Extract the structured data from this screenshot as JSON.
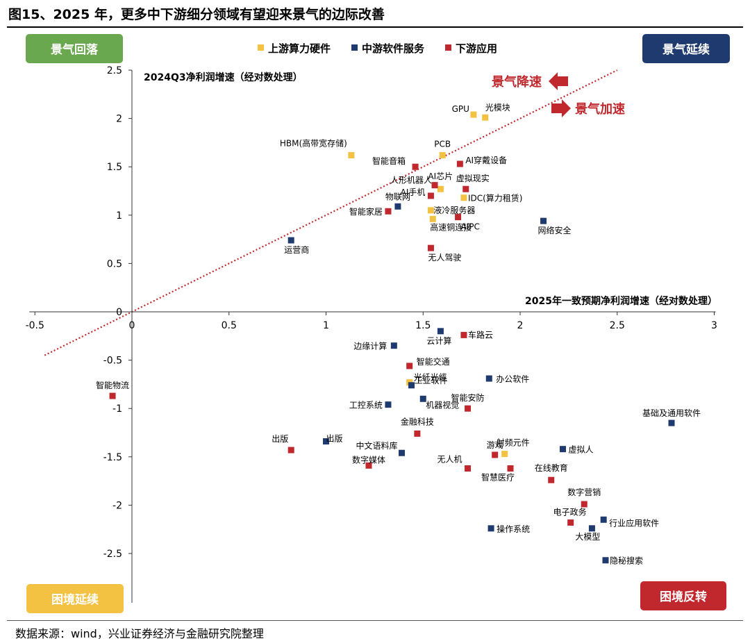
{
  "figure_title": "图15、2025 年，更多中下游细分领域有望迎来景气的边际改善",
  "source": "数据来源：wind，兴业证券经济与金融研究院整理",
  "colors": {
    "upstream": "#f4c242",
    "midstream": "#1f3a6e",
    "downstream": "#c0282d",
    "trendline": "#c0282d",
    "badge_top_left": "#6aa84f",
    "badge_top_right": "#1f3a6e",
    "badge_bottom_left": "#f4c242",
    "badge_bottom_right": "#c0282d"
  },
  "quadrant_labels": {
    "top_left": "景气回落",
    "top_right": "景气延续",
    "bottom_left": "困境延续",
    "bottom_right": "困境反转"
  },
  "annotations": {
    "decel": "景气降速",
    "accel": "景气加速"
  },
  "chart_data": {
    "type": "scatter",
    "xlabel": "2025年一致预期净利润增速（经对数处理）",
    "ylabel": "2024Q3净利润增速（经对数处理）",
    "xlim": [
      -0.5,
      3
    ],
    "ylim": [
      -2.9,
      2.5
    ],
    "xticks": [
      "-0.5",
      "0",
      "0.5",
      "1",
      "1.5",
      "2",
      "2.5",
      "3"
    ],
    "yticks": [
      "2.5",
      "2",
      "1.5",
      "1",
      "0.5",
      "0",
      "-0.5",
      "-1",
      "-1.5",
      "-2",
      "-2.5"
    ],
    "legend_position": "top-center",
    "trendline": {
      "style": "dotted",
      "from": [
        -0.45,
        -0.45
      ],
      "to": [
        2.5,
        2.5
      ]
    },
    "series": [
      {
        "name": "上游算力硬件",
        "color_key": "upstream",
        "points": [
          {
            "label": "GPU",
            "x": 1.76,
            "y": 2.04
          },
          {
            "label": "光模块",
            "x": 1.82,
            "y": 2.01
          },
          {
            "label": "HBM(高带宽存储)",
            "x": 1.13,
            "y": 1.62
          },
          {
            "label": "PCB",
            "x": 1.6,
            "y": 1.62
          },
          {
            "label": "AI芯片",
            "x": 1.59,
            "y": 1.27
          },
          {
            "label": "IDC(算力租赁)",
            "x": 1.71,
            "y": 1.18
          },
          {
            "label": "液冷服务器",
            "x": 1.54,
            "y": 1.05
          },
          {
            "label": "高速铜连接",
            "x": 1.55,
            "y": 0.96
          },
          {
            "label": "光纤光缆",
            "x": 1.43,
            "y": -0.73
          },
          {
            "label": "射频元件",
            "x": 1.92,
            "y": -1.47
          }
        ]
      },
      {
        "name": "中游软件服务",
        "color_key": "midstream",
        "points": [
          {
            "label": "物联网",
            "x": 1.37,
            "y": 1.09
          },
          {
            "label": "网络安全",
            "x": 2.12,
            "y": 0.94
          },
          {
            "label": "运营商",
            "x": 0.82,
            "y": 0.74
          },
          {
            "label": "云计算",
            "x": 1.59,
            "y": -0.2
          },
          {
            "label": "边缘计算",
            "x": 1.35,
            "y": -0.35
          },
          {
            "label": "工业软件",
            "x": 1.44,
            "y": -0.76
          },
          {
            "label": "办公软件",
            "x": 1.84,
            "y": -0.69
          },
          {
            "label": "机器视觉",
            "x": 1.5,
            "y": -0.9
          },
          {
            "label": "工控系统",
            "x": 1.32,
            "y": -0.96
          },
          {
            "label": "基础及通用软件",
            "x": 2.78,
            "y": -1.15
          },
          {
            "label": "出版",
            "x": 1.0,
            "y": -1.34
          },
          {
            "label": "中文语料库",
            "x": 1.39,
            "y": -1.46
          },
          {
            "label": "虚拟人",
            "x": 2.22,
            "y": -1.42
          },
          {
            "label": "行业应用软件",
            "x": 2.43,
            "y": -2.15
          },
          {
            "label": "大模型",
            "x": 2.37,
            "y": -2.24
          },
          {
            "label": "操作系统",
            "x": 1.85,
            "y": -2.24
          },
          {
            "label": "隐秘搜索",
            "x": 2.44,
            "y": -2.57
          }
        ]
      },
      {
        "name": "下游应用",
        "color_key": "downstream",
        "points": [
          {
            "label": "智能音箱",
            "x": 1.46,
            "y": 1.5
          },
          {
            "label": "AI穿戴设备",
            "x": 1.69,
            "y": 1.53
          },
          {
            "label": "人形机器人",
            "x": 1.56,
            "y": 1.31
          },
          {
            "label": "虚拟现实",
            "x": 1.72,
            "y": 1.27
          },
          {
            "label": "AI手机",
            "x": 1.54,
            "y": 1.2
          },
          {
            "label": "智能家居",
            "x": 1.32,
            "y": 1.04
          },
          {
            "label": "AIPC",
            "x": 1.68,
            "y": 0.98
          },
          {
            "label": "无人驾驶",
            "x": 1.54,
            "y": 0.66
          },
          {
            "label": "车路云",
            "x": 1.71,
            "y": -0.24
          },
          {
            "label": "智能交通",
            "x": 1.43,
            "y": -0.56
          },
          {
            "label": "智能物流",
            "x": -0.1,
            "y": -0.87
          },
          {
            "label": "智能安防",
            "x": 1.73,
            "y": -1.0
          },
          {
            "label": "金融科技",
            "x": 1.47,
            "y": -1.26
          },
          {
            "label": "出版",
            "x": 0.82,
            "y": -1.43
          },
          {
            "label": "数字媒体",
            "x": 1.22,
            "y": -1.59
          },
          {
            "label": "游戏",
            "x": 1.87,
            "y": -1.48
          },
          {
            "label": "无人机",
            "x": 1.73,
            "y": -1.62
          },
          {
            "label": "智慧医疗",
            "x": 1.95,
            "y": -1.62
          },
          {
            "label": "在线教育",
            "x": 2.16,
            "y": -1.74
          },
          {
            "label": "数字营销",
            "x": 2.33,
            "y": -1.99
          },
          {
            "label": "电子政务",
            "x": 2.26,
            "y": -2.18
          }
        ]
      }
    ]
  }
}
